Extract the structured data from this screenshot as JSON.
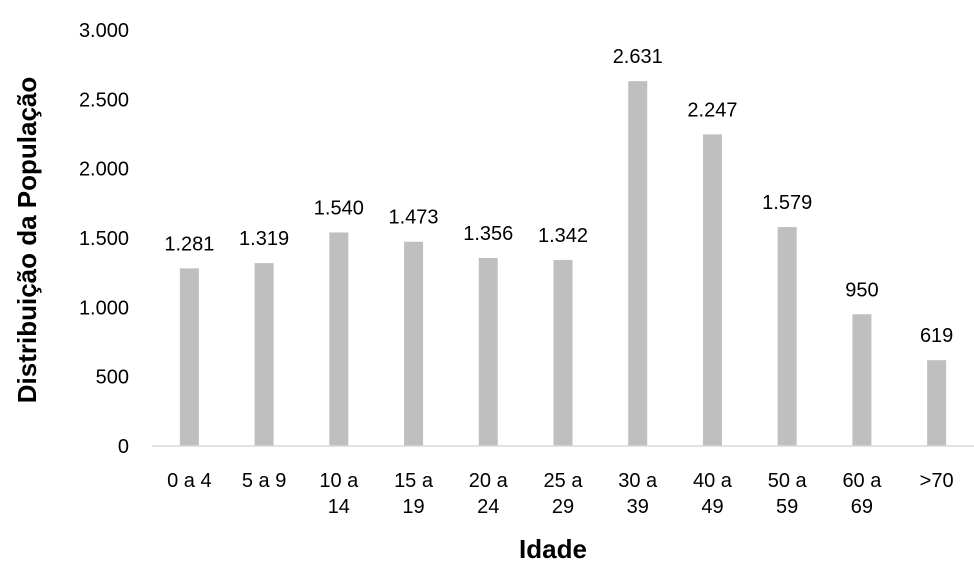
{
  "chart_data": {
    "type": "bar",
    "categories": [
      [
        "0 a 4"
      ],
      [
        "5 a 9"
      ],
      [
        "10 a",
        "14"
      ],
      [
        "15 a",
        "19"
      ],
      [
        "20 a",
        "24"
      ],
      [
        "25 a",
        "29"
      ],
      [
        "30 a",
        "39"
      ],
      [
        "40 a",
        "49"
      ],
      [
        "50 a",
        "59"
      ],
      [
        "60 a",
        "69"
      ],
      [
        ">70"
      ]
    ],
    "values": [
      1281,
      1319,
      1540,
      1473,
      1356,
      1342,
      2631,
      2247,
      1579,
      950,
      619
    ],
    "value_labels": [
      "1.281",
      "1.319",
      "1.540",
      "1.473",
      "1.356",
      "1.342",
      "2.631",
      "2.247",
      "1.579",
      "950",
      "619"
    ],
    "yticks": [
      0,
      500,
      1000,
      1500,
      2000,
      2500,
      3000
    ],
    "ytick_labels": [
      "0",
      "500",
      "1.000",
      "1.500",
      "2.000",
      "2.500",
      "3.000"
    ],
    "ylim": [
      0,
      3000
    ],
    "xlabel": "Idade",
    "ylabel": "Distribuição da População",
    "bar_color": "#bfbfbf",
    "axis_color": "#d9d9d9",
    "grid": false,
    "legend": "none"
  }
}
